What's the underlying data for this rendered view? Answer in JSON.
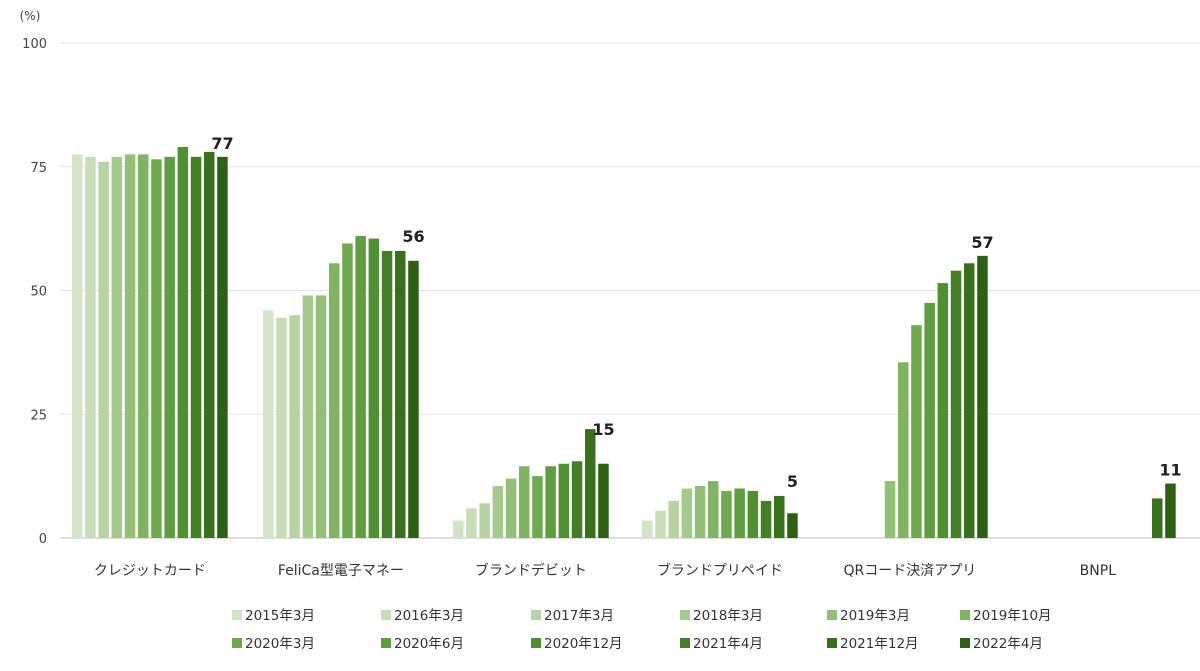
{
  "chart_data": {
    "type": "bar",
    "unit_label": "(%)",
    "ylim": [
      0,
      100
    ],
    "yticks": [
      0,
      25,
      50,
      75,
      100
    ],
    "grid": true,
    "legend_position": "bottom",
    "categories": [
      "クレジットカード",
      "FeliCa型電子マネー",
      "ブランドデビット",
      "ブランドプリペイド",
      "QRコード決済アプリ",
      "BNPL"
    ],
    "series": [
      {
        "name": "2015年3月",
        "color": "#d3e4c6",
        "values": [
          77.5,
          46,
          3.5,
          3.5,
          null,
          null
        ]
      },
      {
        "name": "2016年3月",
        "color": "#c7ddb8",
        "values": [
          77,
          44.5,
          6,
          5.5,
          null,
          null
        ]
      },
      {
        "name": "2017年3月",
        "color": "#b7d3a3",
        "values": [
          76,
          45,
          7,
          7.5,
          null,
          null
        ]
      },
      {
        "name": "2018年3月",
        "color": "#a6c98d",
        "values": [
          77,
          49,
          10.5,
          10,
          null,
          null
        ]
      },
      {
        "name": "2019年3月",
        "color": "#93bf77",
        "values": [
          77.5,
          49,
          12,
          10.5,
          11.5,
          null
        ]
      },
      {
        "name": "2019年10月",
        "color": "#80b462",
        "values": [
          77.5,
          55.5,
          14.5,
          11.5,
          35.5,
          null
        ]
      },
      {
        "name": "2020年3月",
        "color": "#6fa950",
        "values": [
          76.5,
          59.5,
          12.5,
          9.5,
          43,
          null
        ]
      },
      {
        "name": "2020年6月",
        "color": "#5f9d40",
        "values": [
          77,
          61,
          14.5,
          10,
          47.5,
          null
        ]
      },
      {
        "name": "2020年12月",
        "color": "#518f33",
        "values": [
          79,
          60.5,
          15,
          9.5,
          51.5,
          null
        ]
      },
      {
        "name": "2021年4月",
        "color": "#447f28",
        "values": [
          77,
          58,
          15.5,
          7.5,
          54,
          null
        ]
      },
      {
        "name": "2021年12月",
        "color": "#38701e",
        "values": [
          78,
          58,
          22,
          8.5,
          55.5,
          8
        ]
      },
      {
        "name": "2022年4月",
        "color": "#2d6015",
        "values": [
          77,
          56,
          15,
          5,
          57,
          11
        ]
      }
    ],
    "data_labels": [
      "77",
      "56",
      "15",
      "5",
      "57",
      "11"
    ]
  }
}
